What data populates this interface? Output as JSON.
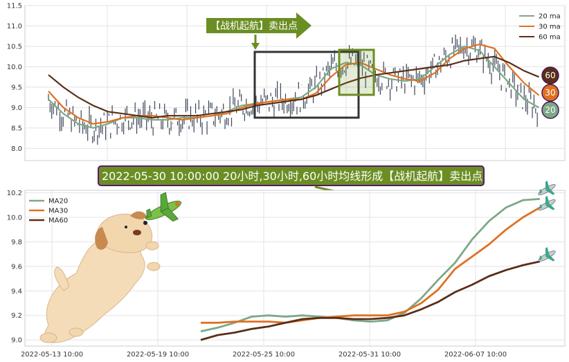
{
  "colors": {
    "ma20": "#7da886",
    "ma30": "#e07020",
    "ma60": "#5a2e18",
    "candle": "#3a4458",
    "highlight_green": "#6b8e23",
    "callout_bg": "#6b8e23",
    "callout_border": "#5a1a6a",
    "rect_dark": "#333333"
  },
  "callout": {
    "text": "2022-05-30 10:00:00 20小时,30小时,60小时均线形成【战机起航】卖出点"
  },
  "arrow_label": {
    "text": "【战机起航】卖出点"
  },
  "badges": [
    {
      "label": "60",
      "color": "#5a2e18"
    },
    {
      "label": "30",
      "color": "#e07020"
    },
    {
      "label": "20",
      "color": "#7da886"
    }
  ],
  "chart_data": [
    {
      "type": "line",
      "subtype": "candlestick-with-moving-averages",
      "panel": "top",
      "ylim": [
        7.7,
        11.5
      ],
      "yticks": [
        "8.0",
        "8.5",
        "9.0",
        "9.5",
        "10.0",
        "10.5",
        "11.0",
        "11.5"
      ],
      "xticks": [],
      "x_index_range": [
        0,
        170
      ],
      "legend": {
        "placement": "top-right",
        "entries": [
          "20 ma",
          "30 ma",
          "60 ma"
        ]
      },
      "grid": true,
      "series": [
        {
          "name": "20 ma",
          "color": "#7da886",
          "x": [
            0,
            5,
            10,
            15,
            20,
            25,
            30,
            35,
            40,
            45,
            50,
            55,
            60,
            65,
            70,
            75,
            80,
            85,
            90,
            95,
            100,
            105,
            110,
            115,
            120,
            125,
            130,
            135,
            140,
            145,
            150,
            155,
            160,
            165
          ],
          "values": [
            9.2,
            8.85,
            8.6,
            8.5,
            8.6,
            8.75,
            8.75,
            8.7,
            8.7,
            8.75,
            8.75,
            8.8,
            8.9,
            9.05,
            9.1,
            9.15,
            9.2,
            9.25,
            9.5,
            9.95,
            10.1,
            10.05,
            9.8,
            9.7,
            9.65,
            9.7,
            10.0,
            10.3,
            10.5,
            10.4,
            10.0,
            9.6,
            9.2,
            9.0
          ]
        },
        {
          "name": "30 ma",
          "color": "#e07020",
          "x": [
            0,
            5,
            10,
            15,
            20,
            25,
            30,
            35,
            40,
            45,
            50,
            55,
            60,
            65,
            70,
            75,
            80,
            85,
            90,
            95,
            100,
            105,
            110,
            115,
            120,
            125,
            130,
            135,
            140,
            145,
            150,
            155,
            160,
            165
          ],
          "values": [
            9.4,
            9.0,
            8.75,
            8.6,
            8.65,
            8.75,
            8.8,
            8.8,
            8.75,
            8.7,
            8.75,
            8.8,
            8.85,
            9.0,
            9.1,
            9.15,
            9.2,
            9.2,
            9.35,
            9.75,
            10.05,
            10.1,
            9.95,
            9.8,
            9.7,
            9.65,
            9.85,
            10.2,
            10.45,
            10.55,
            10.45,
            10.0,
            9.6,
            9.3
          ]
        },
        {
          "name": "60 ma",
          "color": "#5a2e18",
          "x": [
            0,
            5,
            10,
            15,
            20,
            25,
            30,
            35,
            40,
            45,
            50,
            55,
            60,
            65,
            70,
            75,
            80,
            85,
            90,
            95,
            100,
            105,
            110,
            115,
            120,
            125,
            130,
            135,
            140,
            145,
            150,
            155,
            160,
            165
          ],
          "values": [
            9.8,
            9.5,
            9.25,
            9.05,
            8.9,
            8.85,
            8.8,
            8.75,
            8.8,
            8.8,
            8.8,
            8.85,
            8.9,
            8.95,
            9.05,
            9.1,
            9.15,
            9.2,
            9.3,
            9.45,
            9.6,
            9.72,
            9.8,
            9.85,
            9.9,
            9.95,
            10.0,
            10.05,
            10.15,
            10.2,
            10.25,
            10.1,
            9.9,
            9.75
          ]
        }
      ]
    },
    {
      "type": "line",
      "panel": "bottom",
      "ylim": [
        8.95,
        10.22
      ],
      "yticks": [
        "9.0",
        "9.2",
        "9.4",
        "9.6",
        "9.8",
        "10.0",
        "10.2"
      ],
      "xticks": [
        "2022-05-13 10:00",
        "2022-05-19 10:00",
        "2022-05-25 10:00",
        "2022-05-31 10:00",
        "2022-06-07 10:00"
      ],
      "legend": {
        "placement": "top-left",
        "entries": [
          "MA20",
          "MA30",
          "MA60"
        ]
      },
      "grid": true,
      "series": [
        {
          "name": "MA20",
          "color": "#7da886",
          "x": [
            0,
            5,
            10,
            15,
            20,
            25,
            30,
            35,
            40,
            45,
            50,
            55,
            60,
            65,
            70,
            75,
            80,
            85,
            90,
            95,
            100
          ],
          "values": [
            9.07,
            9.1,
            9.14,
            9.19,
            9.2,
            9.19,
            9.2,
            9.19,
            9.18,
            9.16,
            9.15,
            9.16,
            9.22,
            9.34,
            9.49,
            9.63,
            9.82,
            9.97,
            10.08,
            10.14,
            10.15
          ]
        },
        {
          "name": "MA30",
          "color": "#e07020",
          "x": [
            0,
            5,
            10,
            15,
            20,
            25,
            30,
            35,
            40,
            45,
            50,
            55,
            60,
            65,
            70,
            75,
            80,
            85,
            90,
            95,
            100
          ],
          "values": [
            9.14,
            9.14,
            9.15,
            9.15,
            9.15,
            9.14,
            9.16,
            9.18,
            9.19,
            9.2,
            9.2,
            9.2,
            9.23,
            9.3,
            9.41,
            9.58,
            9.68,
            9.78,
            9.9,
            10.0,
            10.08
          ]
        },
        {
          "name": "MA60",
          "color": "#5a2e18",
          "x": [
            0,
            5,
            10,
            15,
            20,
            25,
            30,
            35,
            40,
            45,
            50,
            55,
            60,
            65,
            70,
            75,
            80,
            85,
            90,
            95,
            100
          ],
          "values": [
            9.0,
            9.04,
            9.06,
            9.09,
            9.11,
            9.14,
            9.17,
            9.18,
            9.18,
            9.17,
            9.17,
            9.18,
            9.2,
            9.25,
            9.31,
            9.39,
            9.45,
            9.52,
            9.57,
            9.61,
            9.64
          ]
        }
      ]
    }
  ]
}
